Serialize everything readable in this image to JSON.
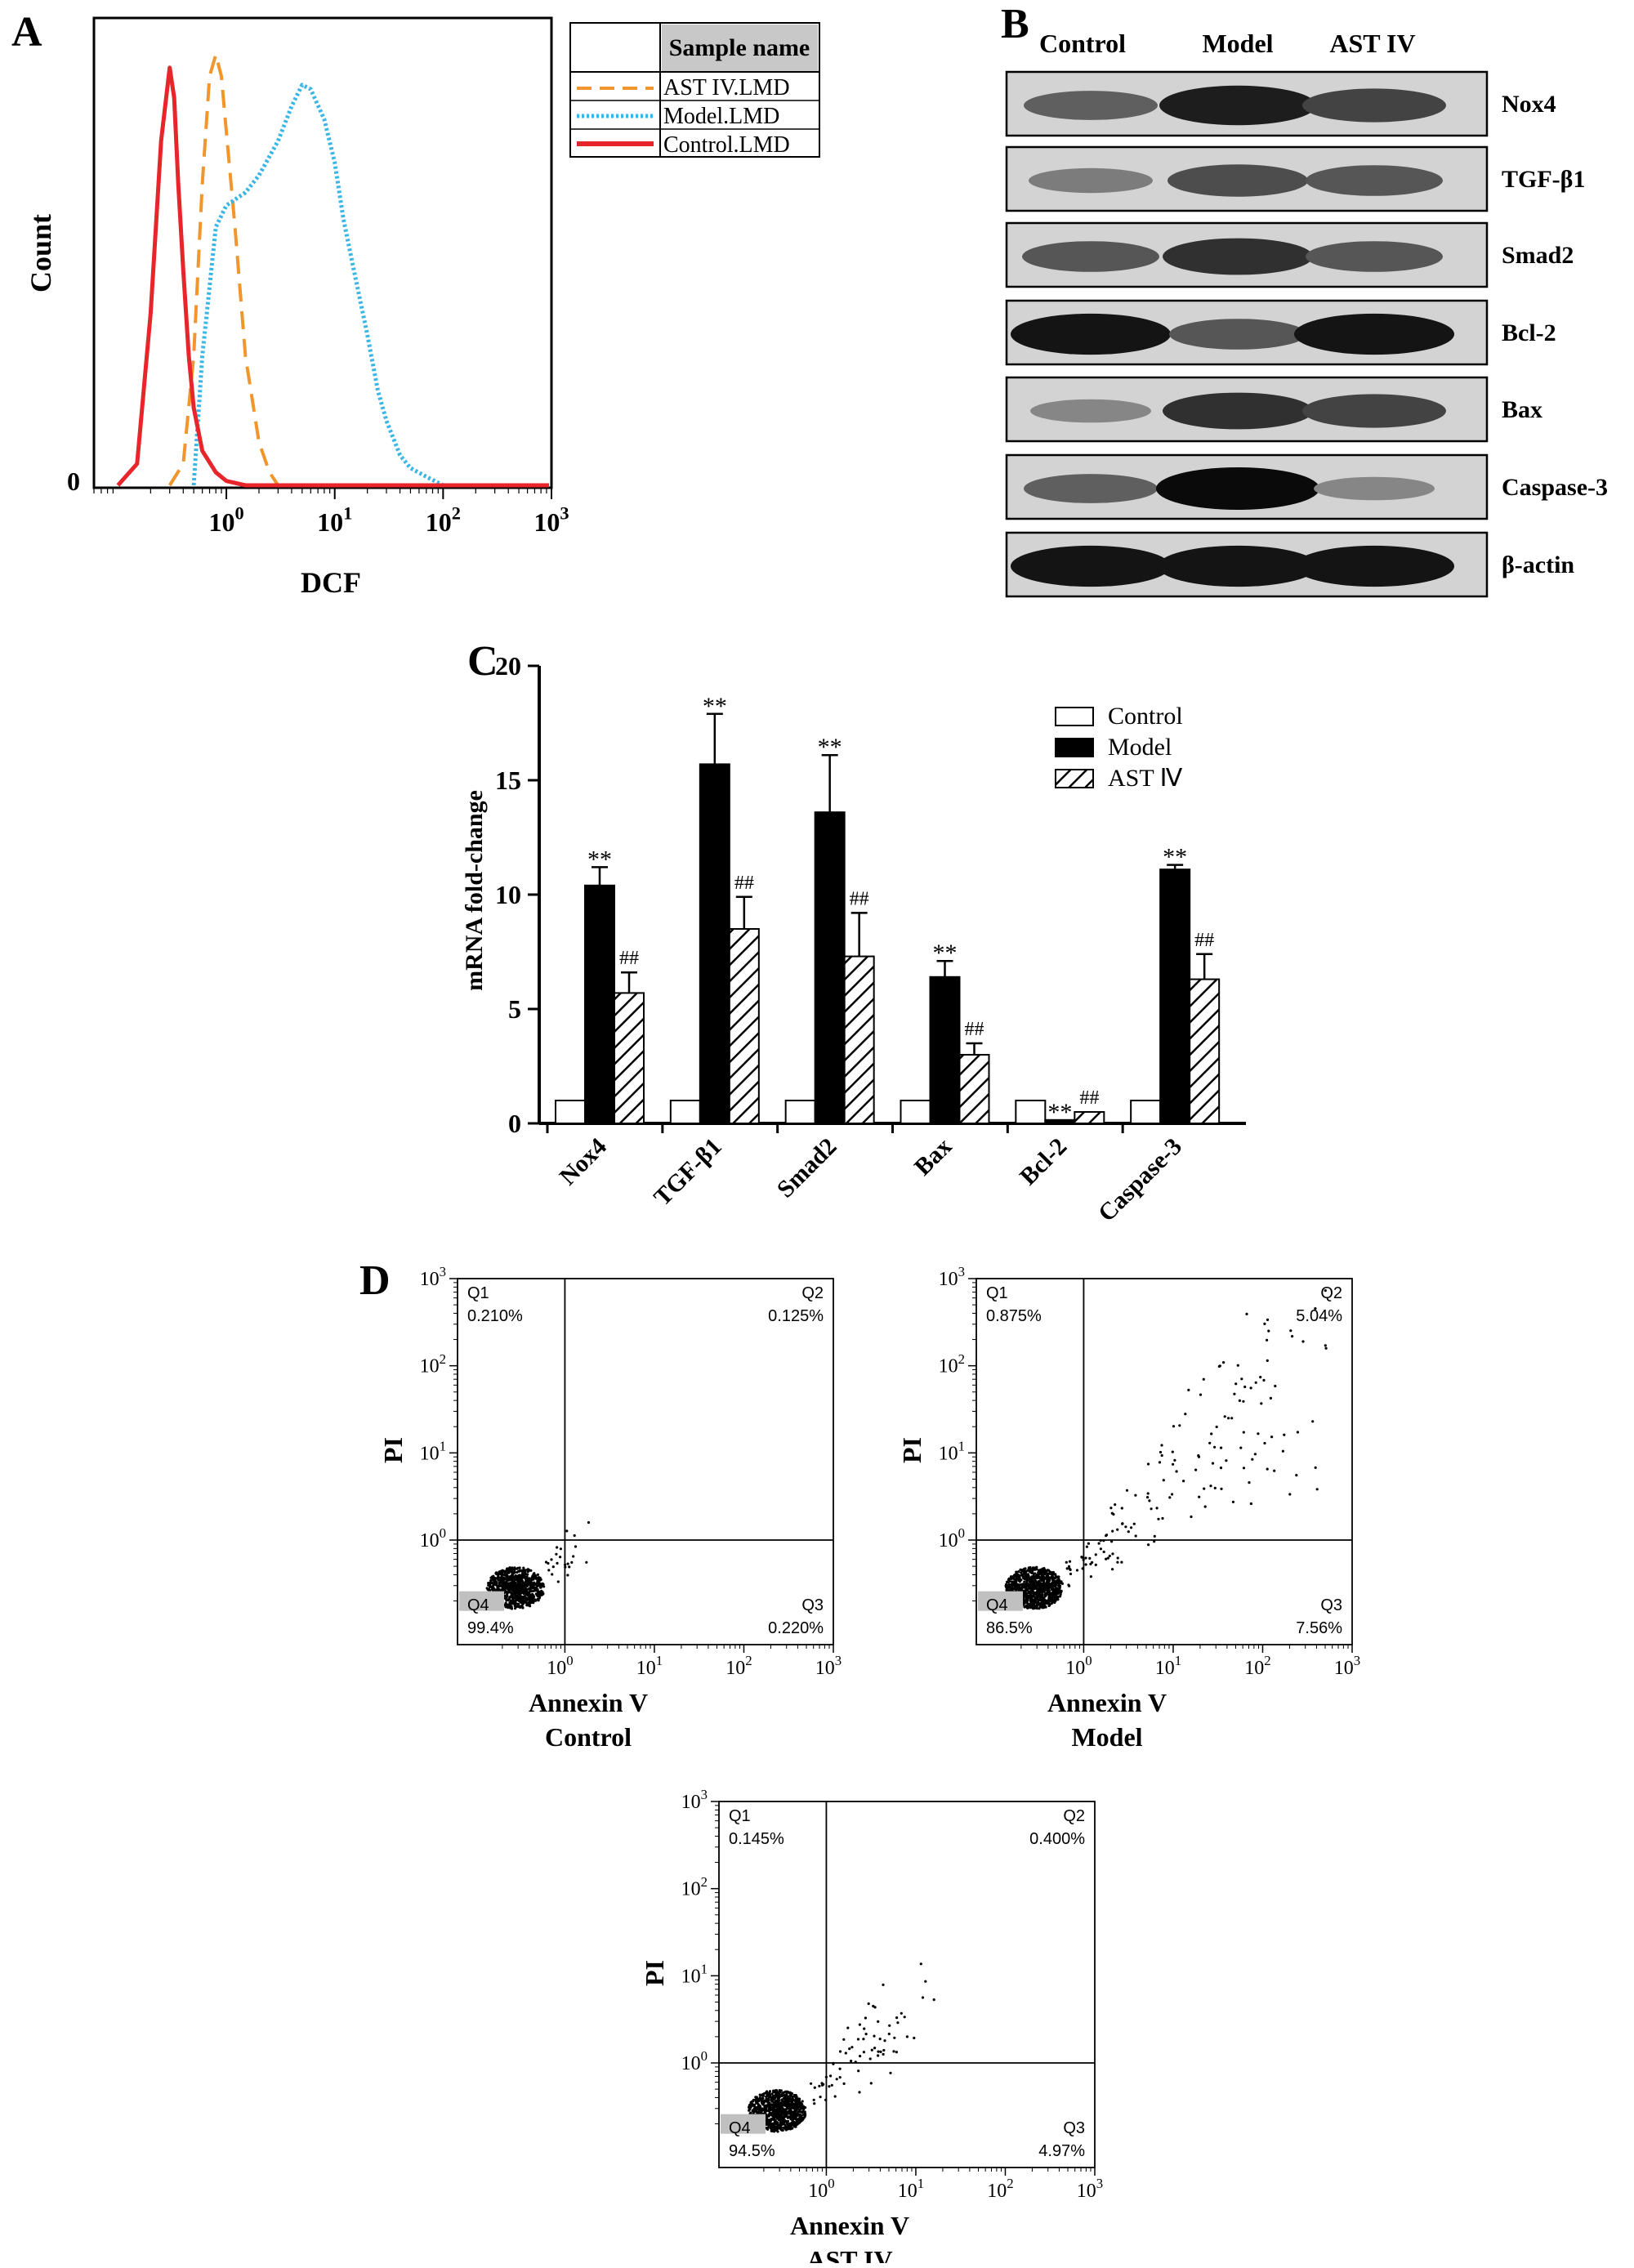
{
  "panels": {
    "a": "A",
    "b": "B",
    "c": "C",
    "d": "D"
  },
  "colors": {
    "ast": "#f0962d",
    "model": "#39b5e6",
    "control": "#e8252b",
    "bar_model": "#000000",
    "bar_control": "#ffffff",
    "legend_header": "#c8c8c8"
  },
  "panel_a": {
    "ylabel": "Count",
    "xlabel": "DCF",
    "y_zero": "0",
    "x_ticks": [
      {
        "base": "10",
        "exp": "0"
      },
      {
        "base": "10",
        "exp": "1"
      },
      {
        "base": "10",
        "exp": "2"
      },
      {
        "base": "10",
        "exp": "3"
      }
    ],
    "legend_header": "Sample name",
    "legend": [
      "AST IV.LMD",
      "Model.LMD",
      "Control.LMD"
    ]
  },
  "panel_b": {
    "lanes": [
      "Control",
      "Model",
      "AST IV"
    ],
    "blots": [
      {
        "label": "Nox4",
        "intensity": [
          0.55,
          0.9,
          0.7
        ]
      },
      {
        "label": "TGF-β1",
        "intensity": [
          0.4,
          0.65,
          0.6
        ]
      },
      {
        "label": "Smad2",
        "intensity": [
          0.6,
          0.8,
          0.6
        ]
      },
      {
        "label": "Bcl-2",
        "intensity": [
          0.95,
          0.6,
          0.95
        ]
      },
      {
        "label": "Bax",
        "intensity": [
          0.35,
          0.8,
          0.7
        ]
      },
      {
        "label": "Caspase-3",
        "intensity": [
          0.55,
          1.0,
          0.35
        ]
      },
      {
        "label": "β-actin",
        "intensity": [
          0.95,
          0.95,
          0.95
        ]
      }
    ]
  },
  "chart_data": [
    {
      "type": "line",
      "panel": "A",
      "title": "",
      "xlabel": "DCF",
      "ylabel": "Count",
      "x_scale": "log",
      "xlim": [
        0.06,
        1000
      ],
      "x_ticks": [
        1,
        10,
        100,
        1000
      ],
      "legend_title": "Sample name",
      "legend_position": "top-right",
      "series": [
        {
          "name": "AST IV.LMD",
          "color": "#f0962d",
          "style": "dashed",
          "x": [
            0.3,
            0.4,
            0.5,
            0.6,
            0.7,
            0.8,
            0.9,
            1.0,
            1.2,
            1.5,
            2.0,
            2.5,
            3.0
          ],
          "y": [
            0.0,
            0.05,
            0.3,
            0.7,
            0.95,
            1.0,
            0.95,
            0.82,
            0.6,
            0.3,
            0.1,
            0.03,
            0.0
          ]
        },
        {
          "name": "Model.LMD",
          "color": "#39b5e6",
          "style": "dotted",
          "x": [
            0.5,
            0.6,
            0.8,
            1.0,
            1.5,
            2.0,
            3.0,
            4.0,
            5.0,
            6.0,
            8.0,
            10,
            12,
            15,
            20,
            25,
            30,
            40,
            50,
            70,
            100,
            200
          ],
          "y": [
            0.0,
            0.3,
            0.6,
            0.65,
            0.68,
            0.72,
            0.8,
            0.88,
            0.93,
            0.92,
            0.85,
            0.75,
            0.62,
            0.5,
            0.35,
            0.22,
            0.15,
            0.07,
            0.04,
            0.02,
            0.0,
            0.0
          ]
        },
        {
          "name": "Control.LMD",
          "color": "#e8252b",
          "style": "solid",
          "x": [
            0.1,
            0.15,
            0.2,
            0.25,
            0.3,
            0.33,
            0.36,
            0.4,
            0.45,
            0.5,
            0.6,
            0.8,
            1.0,
            1.5
          ],
          "y": [
            0.0,
            0.05,
            0.4,
            0.8,
            0.97,
            0.9,
            0.7,
            0.5,
            0.3,
            0.18,
            0.08,
            0.03,
            0.01,
            0.0
          ]
        }
      ]
    },
    {
      "type": "bar",
      "panel": "C",
      "title": "",
      "xlabel": "",
      "ylabel": "mRNA fold-change",
      "ylim": [
        0,
        20
      ],
      "y_ticks": [
        0,
        5,
        10,
        15,
        20
      ],
      "categories": [
        "Nox4",
        "TGF-β1",
        "Smad2",
        "Bax",
        "Bcl-2",
        "Caspase-3"
      ],
      "legend_position": "top-right",
      "series": [
        {
          "name": "Control",
          "values": [
            1,
            1,
            1,
            1,
            1,
            1
          ],
          "errors": [
            0,
            0,
            0,
            0,
            0,
            0
          ],
          "marks": [
            "",
            "",
            "",
            "",
            "",
            ""
          ]
        },
        {
          "name": "Model",
          "values": [
            10.4,
            15.7,
            13.6,
            6.4,
            0.15,
            11.1
          ],
          "errors": [
            0.8,
            2.2,
            2.5,
            0.7,
            0.0,
            0.2
          ],
          "marks": [
            "**",
            "**",
            "**",
            "**",
            "**",
            "**"
          ]
        },
        {
          "name": "AST Ⅳ",
          "values": [
            5.7,
            8.5,
            7.3,
            3.0,
            0.5,
            6.3
          ],
          "errors": [
            0.9,
            1.4,
            1.9,
            0.5,
            0.0,
            1.1
          ],
          "marks": [
            "##",
            "##",
            "##",
            "##",
            "##",
            "##"
          ]
        }
      ]
    },
    {
      "type": "scatter",
      "panel": "D",
      "plots": [
        {
          "xlabel": "Annexin V",
          "sample": "Control",
          "ylabel": "PI",
          "quadrants": {
            "Q1": "0.210%",
            "Q2": "0.125%",
            "Q3": "0.220%",
            "Q4": "99.4%"
          }
        },
        {
          "xlabel": "Annexin V",
          "sample": "Model",
          "ylabel": "PI",
          "quadrants": {
            "Q1": "0.875%",
            "Q2": "5.04%",
            "Q3": "7.56%",
            "Q4": "86.5%"
          }
        },
        {
          "xlabel": "Annexin V",
          "sample": "AST IV",
          "ylabel": "PI",
          "quadrants": {
            "Q1": "0.145%",
            "Q2": "0.400%",
            "Q3": "4.97%",
            "Q4": "94.5%"
          }
        }
      ],
      "x_scale": "log",
      "y_scale": "log",
      "x_ticks": [
        1,
        10,
        100,
        1000
      ],
      "y_ticks": [
        1,
        10,
        100,
        1000
      ],
      "quadrant_labels": [
        "Q1",
        "Q2",
        "Q3",
        "Q4"
      ]
    }
  ]
}
